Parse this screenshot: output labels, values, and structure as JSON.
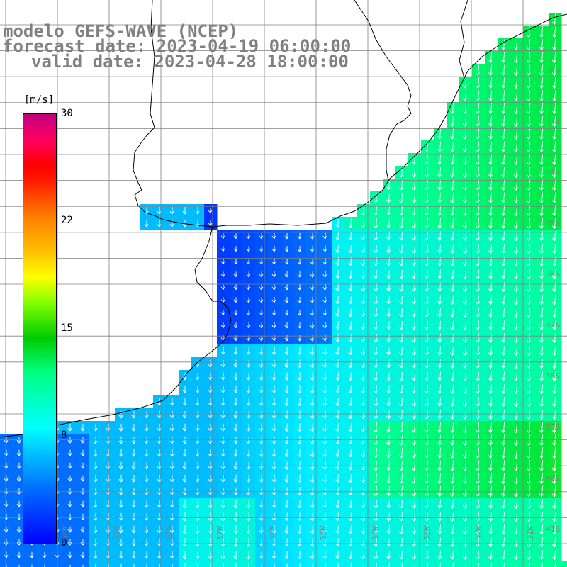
{
  "titles": {
    "model": "modelo GEFS-WAVE (NCEP)",
    "forecast": "forecast date: 2023-04-19 06:00:00",
    "valid": "valid date: 2023-04-28 18:00:00"
  },
  "colorbar": {
    "unit": "[m/s]",
    "ticks": [
      "30",
      "22",
      "15",
      "8",
      "0"
    ],
    "colors": [
      "#0000ff",
      "#0070ff",
      "#00ffff",
      "#00ff80",
      "#00cc00",
      "#80ff00",
      "#ffff00",
      "#ff8000",
      "#ff0000",
      "#c00080"
    ]
  },
  "lat_labels": [
    "32S",
    "33S",
    "34S",
    "35S",
    "36S",
    "37S",
    "38S",
    "39S",
    "40S",
    "41S"
  ],
  "lon_labels": [
    "60W",
    "59W",
    "58W",
    "57W",
    "56W",
    "55W",
    "54W",
    "53W",
    "52W",
    "51W"
  ],
  "map": {
    "land_color": "#ffffff",
    "grid_color": "#808080",
    "coast_color": "#000000",
    "arrow_color": "#ffffff",
    "wind_field": "predominantly northeasterly-to-southward flow, strongest (green) offshore to the east and south-east, weak (blue) inside the estuary and near the coast"
  }
}
